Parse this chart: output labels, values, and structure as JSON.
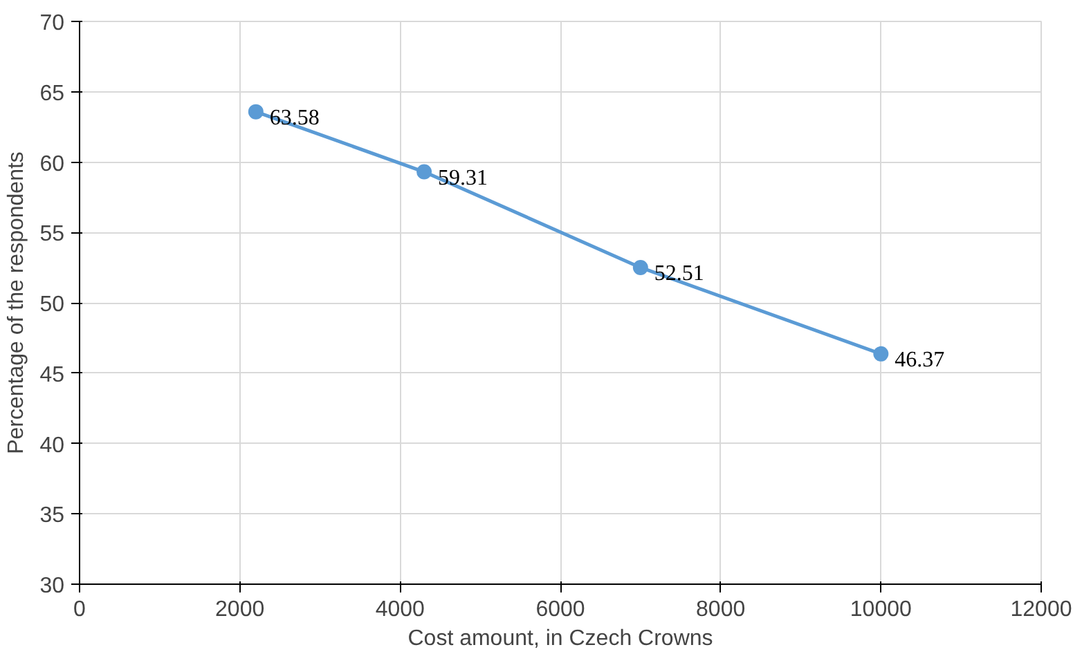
{
  "chart_data": {
    "type": "line",
    "xlabel": "Cost amount, in Czech Crowns",
    "ylabel": "Percentage of the respondents",
    "x": [
      2200,
      4300,
      7000,
      10000
    ],
    "series": [
      {
        "color": "#5b9bd5",
        "values": [
          63.58,
          59.31,
          52.51,
          46.37
        ]
      }
    ],
    "xlim": [
      0,
      12000
    ],
    "xticks": [
      0,
      2000,
      4000,
      6000,
      8000,
      10000,
      12000
    ],
    "ylim": [
      30,
      70
    ],
    "yticks": [
      30,
      35,
      40,
      45,
      50,
      55,
      60,
      65,
      70
    ],
    "grid": true,
    "marker": "circle",
    "line_style": "solid",
    "data_labels": true
  }
}
